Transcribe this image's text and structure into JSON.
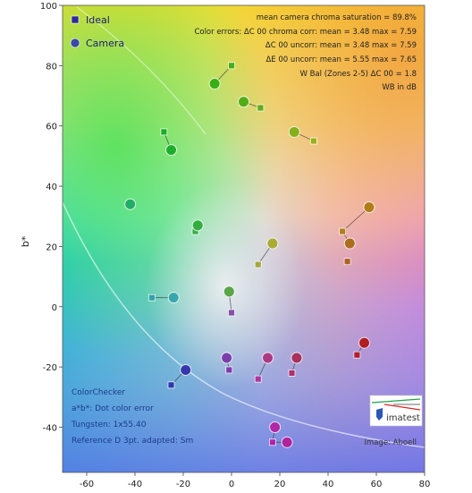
{
  "chart_data": {
    "type": "scatter",
    "title": "",
    "xlabel": "",
    "ylabel": "b*",
    "xlim": [
      -70,
      80
    ],
    "ylim": [
      -55,
      100
    ],
    "xticks": [
      -60,
      -40,
      -20,
      0,
      20,
      40,
      60,
      80
    ],
    "yticks": [
      -40,
      -20,
      0,
      20,
      40,
      60,
      80,
      100
    ],
    "grid": false,
    "legend": {
      "position": "top-left",
      "entries": [
        {
          "label": "Ideal",
          "marker": "square",
          "color": "#2a2a9a"
        },
        {
          "label": "Camera",
          "marker": "circle",
          "color": "#3a4aa8"
        }
      ]
    },
    "stats": [
      "mean camera chroma saturation = 89.8%",
      "Color errors: ΔC 00 chroma corr: mean = 3.48   max = 7.59",
      "ΔC 00 uncorr: mean = 3.48   max = 7.59",
      "ΔE 00 uncorr: mean = 5.55   max = 7.65",
      "W Bal (Zones 2-5) ΔC 00 = 1.8",
      "WB in dB"
    ],
    "footnote": [
      "ColorChecker",
      "a*b*: Dot color error",
      "Tungsten: 1x55.40",
      "Reference D 3pt. adapted: Sm"
    ],
    "logo_text": "imatest",
    "credit": "Image: Aboell",
    "series": [
      {
        "name": "Ideal",
        "marker": "square",
        "points": [
          {
            "x": 0,
            "y": 80
          },
          {
            "x": 12,
            "y": 66
          },
          {
            "x": 34,
            "y": 55
          },
          {
            "x": -28,
            "y": 58
          },
          {
            "x": -15,
            "y": 25
          },
          {
            "x": 46,
            "y": 25
          },
          {
            "x": 48,
            "y": 15
          },
          {
            "x": 11,
            "y": 14
          },
          {
            "x": -33,
            "y": 3
          },
          {
            "x": 0,
            "y": -2
          },
          {
            "x": 52,
            "y": -16
          },
          {
            "x": -1,
            "y": -21
          },
          {
            "x": 11,
            "y": -24
          },
          {
            "x": 25,
            "y": -22
          },
          {
            "x": -25,
            "y": -26
          },
          {
            "x": 17,
            "y": -45
          }
        ]
      },
      {
        "name": "Camera",
        "marker": "circle",
        "points": [
          {
            "x": -7,
            "y": 74
          },
          {
            "x": 5,
            "y": 68
          },
          {
            "x": 26,
            "y": 58
          },
          {
            "x": -25,
            "y": 52
          },
          {
            "x": -42,
            "y": 34
          },
          {
            "x": -14,
            "y": 27
          },
          {
            "x": 57,
            "y": 33
          },
          {
            "x": 49,
            "y": 21
          },
          {
            "x": 17,
            "y": 21
          },
          {
            "x": -1,
            "y": 5
          },
          {
            "x": -24,
            "y": 3
          },
          {
            "x": 55,
            "y": -12
          },
          {
            "x": -2,
            "y": -17
          },
          {
            "x": 15,
            "y": -17
          },
          {
            "x": 27,
            "y": -17
          },
          {
            "x": -19,
            "y": -21
          },
          {
            "x": 18,
            "y": -40
          },
          {
            "x": 23,
            "y": -45
          }
        ]
      }
    ]
  }
}
